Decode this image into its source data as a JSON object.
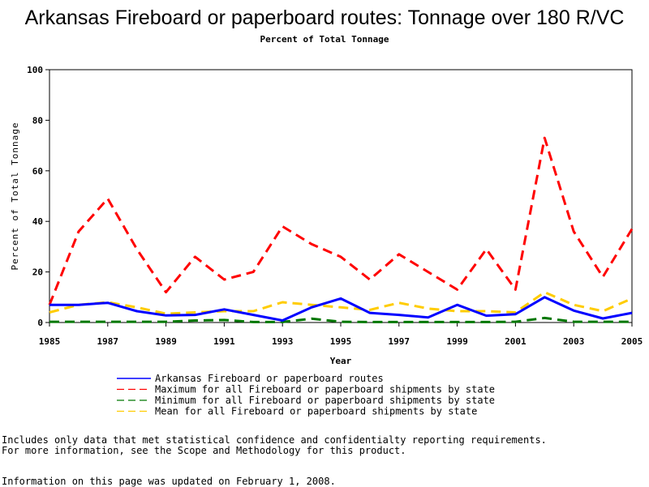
{
  "chart_data": {
    "type": "line",
    "title": "Arkansas Fireboard or paperboard routes: Tonnage over 180 R/VC",
    "subtitle": "Percent of Total Tonnage",
    "xlabel": "Year",
    "ylabel": "Percent of Total Tonnage",
    "xlim": [
      1985,
      2005
    ],
    "ylim": [
      0,
      100
    ],
    "x_ticks": [
      1985,
      1987,
      1989,
      1991,
      1993,
      1995,
      1997,
      1999,
      2001,
      2003,
      2005
    ],
    "y_ticks": [
      0,
      20,
      40,
      60,
      80,
      100
    ],
    "grid": false,
    "legend_position": "bottom",
    "x": [
      1985,
      1986,
      1987,
      1988,
      1989,
      1990,
      1991,
      1992,
      1993,
      1994,
      1995,
      1996,
      1997,
      1998,
      1999,
      2000,
      2001,
      2002,
      2003,
      2004,
      2005
    ],
    "series": [
      {
        "name": "Arkansas Fireboard or paperboard routes",
        "color": "#0000ff",
        "style": "solid",
        "values": [
          7,
          7,
          7.8,
          4.5,
          2.8,
          3,
          5.2,
          3,
          0.8,
          6,
          9.5,
          3.8,
          3,
          2,
          7,
          2.7,
          3.3,
          10,
          4.7,
          1.6,
          3.8
        ]
      },
      {
        "name": "Maximum for all Fireboard or paperboard shipments by state",
        "color": "#ff0000",
        "style": "dashed",
        "values": [
          7,
          36,
          49,
          29,
          12,
          26,
          17,
          20,
          38,
          31,
          26,
          17,
          27,
          20,
          13,
          29,
          13,
          73,
          36,
          18,
          37
        ]
      },
      {
        "name": "Minimum for all Fireboard or paperboard shipments by state",
        "color": "#007700",
        "style": "dashed",
        "values": [
          0.3,
          0.3,
          0.3,
          0.3,
          0.3,
          0.8,
          1,
          0.2,
          0.2,
          1.5,
          0.3,
          0.2,
          0.2,
          0.2,
          0.2,
          0.2,
          0.3,
          1.8,
          0.3,
          0.3,
          0.3
        ]
      },
      {
        "name": "Mean for all Fireboard or paperboard shipments by state",
        "color": "#ffcc00",
        "style": "dashed",
        "values": [
          4,
          7,
          8,
          6,
          3.5,
          4,
          4.5,
          4.5,
          8,
          7,
          6,
          5,
          7.8,
          5.5,
          4.5,
          4.5,
          4,
          12,
          7,
          4.5,
          9.5
        ]
      }
    ]
  },
  "notes": {
    "line1": "Includes only data that met statistical confidence and confidentialty reporting requirements.",
    "line2": "For more information, see the Scope and Methodology for this product.",
    "updated": "Information on this page was updated on February 1, 2008."
  }
}
